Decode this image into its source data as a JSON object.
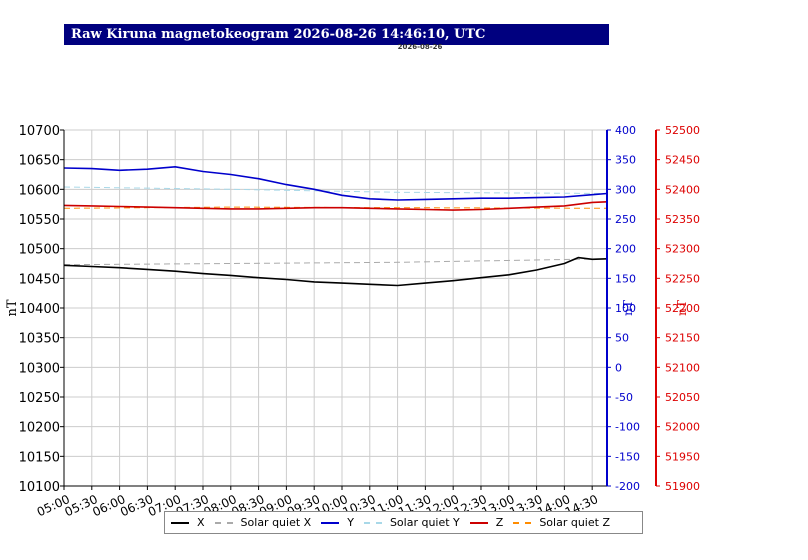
{
  "header": {
    "title": "Raw Kiruna magnetokeogram 2026-08-26 14:46:10, UTC",
    "subtitle": "2026-08-26"
  },
  "colors": {
    "title_bg": "#00007f",
    "x": "#000000",
    "solar_quiet_x": "#aaaaaa",
    "y": "#0000cc",
    "solar_quiet_y": "#a8d8e8",
    "z": "#cc0000",
    "solar_quiet_z": "#ff8c00",
    "left_axis": "#000000",
    "right_axis_1": "#0000cc",
    "right_axis_2": "#dd0000"
  },
  "legend": [
    {
      "label": "X",
      "color_key": "x",
      "dashed": false
    },
    {
      "label": "Solar quiet X",
      "color_key": "solar_quiet_x",
      "dashed": true
    },
    {
      "label": "Y",
      "color_key": "y",
      "dashed": false
    },
    {
      "label": "Solar quiet Y",
      "color_key": "solar_quiet_y",
      "dashed": true
    },
    {
      "label": "Z",
      "color_key": "z",
      "dashed": false
    },
    {
      "label": "Solar quiet Z",
      "color_key": "solar_quiet_z",
      "dashed": true
    }
  ],
  "chart_data": {
    "type": "line",
    "title": "Raw Kiruna magnetokeogram 2026-08-26 14:46:10, UTC",
    "x_ticks": [
      "05:00",
      "05:30",
      "06:00",
      "06:30",
      "07:00",
      "07:30",
      "08:00",
      "08:30",
      "09:00",
      "09:30",
      "10:00",
      "10:30",
      "11:00",
      "11:30",
      "12:00",
      "12:30",
      "13:00",
      "13:30",
      "14:00",
      "14:30"
    ],
    "xlim": [
      "05:00",
      "14:46"
    ],
    "grid": true,
    "legend_position": "bottom",
    "axes": {
      "left": {
        "label": "nT",
        "ylim": [
          10100,
          10700
        ],
        "ticks": [
          10100,
          10150,
          10200,
          10250,
          10300,
          10350,
          10400,
          10450,
          10500,
          10550,
          10600,
          10650,
          10700
        ]
      },
      "right1": {
        "label": "nT",
        "ylim": [
          -200,
          400
        ],
        "ticks": [
          -200,
          -150,
          -100,
          -50,
          0,
          50,
          100,
          150,
          200,
          250,
          300,
          350,
          400
        ]
      },
      "right2": {
        "label": "nT",
        "ylim": [
          51900,
          52500
        ],
        "ticks": [
          51900,
          51950,
          52000,
          52050,
          52100,
          52150,
          52200,
          52250,
          52300,
          52350,
          52400,
          52450,
          52500
        ]
      }
    },
    "series": [
      {
        "name": "X",
        "axis": "left",
        "color_key": "x",
        "dashed": false,
        "x": [
          "05:00",
          "05:30",
          "06:00",
          "06:30",
          "07:00",
          "07:30",
          "08:00",
          "08:30",
          "09:00",
          "09:30",
          "10:00",
          "10:30",
          "11:00",
          "11:30",
          "12:00",
          "12:30",
          "13:00",
          "13:30",
          "14:00",
          "14:15",
          "14:30",
          "14:46"
        ],
        "y": [
          10472,
          10470,
          10468,
          10465,
          10462,
          10458,
          10455,
          10451,
          10448,
          10444,
          10442,
          10440,
          10438,
          10442,
          10446,
          10451,
          10456,
          10464,
          10475,
          10485,
          10482,
          10483
        ]
      },
      {
        "name": "Solar quiet X",
        "axis": "left",
        "color_key": "solar_quiet_x",
        "dashed": true,
        "x": [
          "05:00",
          "08:00",
          "11:00",
          "14:46"
        ],
        "y": [
          10473,
          10475,
          10477,
          10483
        ]
      },
      {
        "name": "Y",
        "axis": "right1",
        "color_key": "y",
        "dashed": false,
        "x": [
          "05:00",
          "05:30",
          "06:00",
          "06:30",
          "07:00",
          "07:30",
          "08:00",
          "08:30",
          "09:00",
          "09:30",
          "10:00",
          "10:30",
          "11:00",
          "11:30",
          "12:00",
          "12:30",
          "13:00",
          "13:30",
          "14:00",
          "14:30",
          "14:46"
        ],
        "y": [
          336,
          335,
          332,
          334,
          338,
          330,
          325,
          318,
          308,
          300,
          290,
          284,
          282,
          283,
          284,
          285,
          285,
          286,
          287,
          291,
          293
        ]
      },
      {
        "name": "Solar quiet Y",
        "axis": "right1",
        "color_key": "solar_quiet_y",
        "dashed": true,
        "x": [
          "05:00",
          "08:00",
          "11:00",
          "14:46"
        ],
        "y": [
          304,
          300,
          295,
          293
        ]
      },
      {
        "name": "Z",
        "axis": "right2",
        "color_key": "z",
        "dashed": false,
        "x": [
          "05:00",
          "05:30",
          "06:00",
          "06:30",
          "07:00",
          "07:30",
          "08:00",
          "08:30",
          "09:00",
          "09:30",
          "10:00",
          "10:30",
          "11:00",
          "11:30",
          "12:00",
          "12:30",
          "13:00",
          "13:30",
          "14:00",
          "14:30",
          "14:46"
        ],
        "y": [
          52373,
          52372,
          52371,
          52370,
          52369,
          52368,
          52367,
          52367,
          52368,
          52369,
          52369,
          52368,
          52367,
          52366,
          52365,
          52366,
          52368,
          52370,
          52372,
          52378,
          52379
        ]
      },
      {
        "name": "Solar quiet Z",
        "axis": "right2",
        "color_key": "solar_quiet_z",
        "dashed": true,
        "x": [
          "05:00",
          "08:00",
          "11:00",
          "14:46"
        ],
        "y": [
          52368,
          52370,
          52369,
          52368
        ]
      }
    ]
  }
}
